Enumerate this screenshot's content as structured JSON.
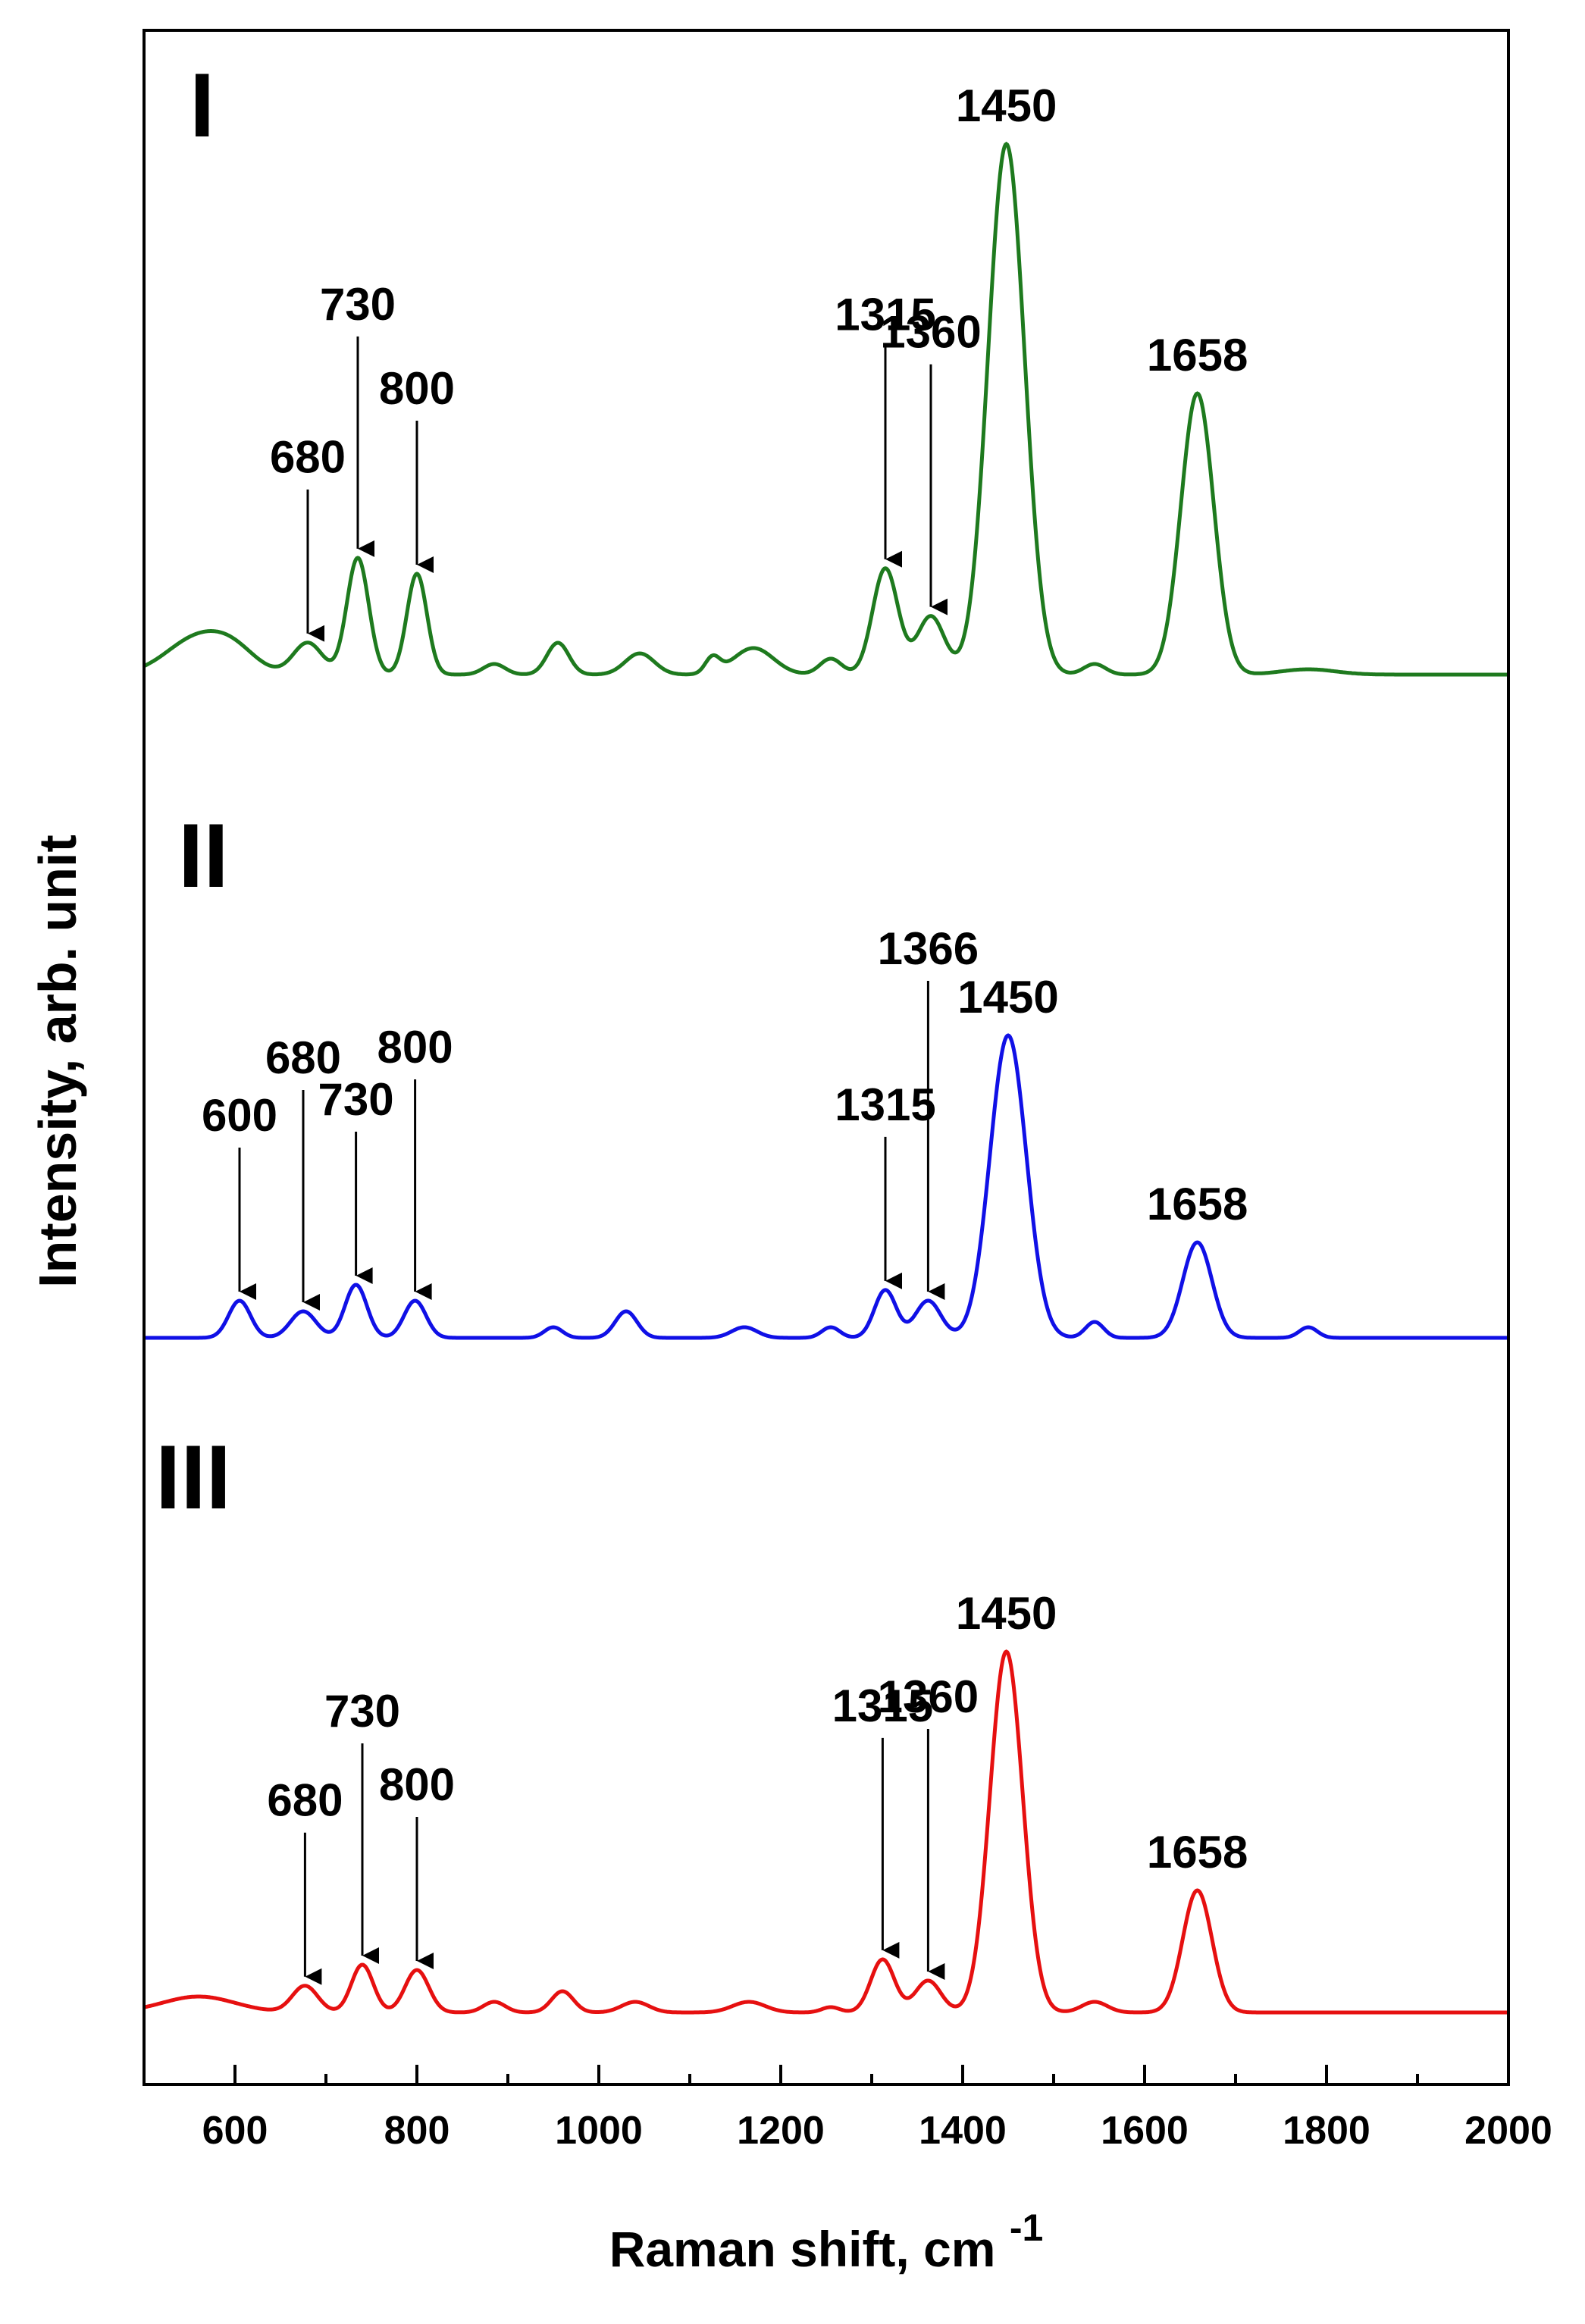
{
  "chart_data": {
    "type": "line",
    "xlabel": "Raman shift, cm",
    "xlabel_superscript": "-1",
    "ylabel": "Intensity, arb. unit",
    "xlim": [
      500,
      2000
    ],
    "x_ticks": [
      600,
      800,
      1000,
      1200,
      1400,
      1600,
      1800,
      2000
    ],
    "x_tick_labels": [
      "600",
      "800",
      "1000",
      "1200",
      "1400",
      "1600",
      "1800",
      "2000"
    ],
    "y_ticks_shown": false,
    "grid": false,
    "series": [
      {
        "name": "I",
        "color": "#1e7a1e",
        "peaks": [
          {
            "x": 560,
            "h": 0.07,
            "w": 35
          },
          {
            "x": 600,
            "h": 0.03,
            "w": 25
          },
          {
            "x": 680,
            "h": 0.06,
            "w": 16
          },
          {
            "x": 735,
            "h": 0.22,
            "w": 12
          },
          {
            "x": 800,
            "h": 0.19,
            "w": 11
          },
          {
            "x": 885,
            "h": 0.02,
            "w": 12
          },
          {
            "x": 955,
            "h": 0.06,
            "w": 12
          },
          {
            "x": 1045,
            "h": 0.04,
            "w": 16
          },
          {
            "x": 1125,
            "h": 0.03,
            "w": 8
          },
          {
            "x": 1170,
            "h": 0.05,
            "w": 22
          },
          {
            "x": 1255,
            "h": 0.03,
            "w": 12
          },
          {
            "x": 1315,
            "h": 0.2,
            "w": 14
          },
          {
            "x": 1365,
            "h": 0.11,
            "w": 15
          },
          {
            "x": 1448,
            "h": 1.0,
            "w": 20
          },
          {
            "x": 1545,
            "h": 0.02,
            "w": 12
          },
          {
            "x": 1658,
            "h": 0.53,
            "w": 18
          },
          {
            "x": 1780,
            "h": 0.01,
            "w": 30
          }
        ],
        "annotations": [
          {
            "text": "680",
            "x": 680,
            "arrow": true
          },
          {
            "text": "730",
            "x": 735,
            "arrow": true
          },
          {
            "text": "800",
            "x": 800,
            "arrow": true
          },
          {
            "text": "1315",
            "x": 1315,
            "arrow": true
          },
          {
            "text": "1360",
            "x": 1365,
            "arrow": true
          },
          {
            "text": "1450",
            "x": 1448,
            "arrow": false
          },
          {
            "text": "1658",
            "x": 1658,
            "arrow": false
          }
        ]
      },
      {
        "name": "II",
        "color": "#1010e6",
        "peaks": [
          {
            "x": 605,
            "h": 0.07,
            "w": 12
          },
          {
            "x": 675,
            "h": 0.05,
            "w": 14
          },
          {
            "x": 733,
            "h": 0.1,
            "w": 12
          },
          {
            "x": 798,
            "h": 0.07,
            "w": 12
          },
          {
            "x": 950,
            "h": 0.02,
            "w": 10
          },
          {
            "x": 1030,
            "h": 0.05,
            "w": 12
          },
          {
            "x": 1160,
            "h": 0.02,
            "w": 14
          },
          {
            "x": 1255,
            "h": 0.02,
            "w": 10
          },
          {
            "x": 1315,
            "h": 0.09,
            "w": 12
          },
          {
            "x": 1362,
            "h": 0.07,
            "w": 14
          },
          {
            "x": 1450,
            "h": 0.57,
            "w": 20
          },
          {
            "x": 1545,
            "h": 0.03,
            "w": 10
          },
          {
            "x": 1658,
            "h": 0.18,
            "w": 16
          },
          {
            "x": 1780,
            "h": 0.02,
            "w": 10
          }
        ],
        "annotations": [
          {
            "text": "600",
            "x": 605,
            "arrow": true
          },
          {
            "text": "680",
            "x": 675,
            "arrow": true
          },
          {
            "text": "730",
            "x": 733,
            "arrow": true
          },
          {
            "text": "800",
            "x": 798,
            "arrow": true
          },
          {
            "text": "1315",
            "x": 1315,
            "arrow": true
          },
          {
            "text": "1366",
            "x": 1362,
            "arrow": true
          },
          {
            "text": "1450",
            "x": 1450,
            "arrow": false
          },
          {
            "text": "1658",
            "x": 1658,
            "arrow": false
          }
        ]
      },
      {
        "name": "III",
        "color": "#e61010",
        "peaks": [
          {
            "x": 560,
            "h": 0.03,
            "w": 40
          },
          {
            "x": 677,
            "h": 0.05,
            "w": 14
          },
          {
            "x": 740,
            "h": 0.09,
            "w": 12
          },
          {
            "x": 800,
            "h": 0.08,
            "w": 13
          },
          {
            "x": 885,
            "h": 0.02,
            "w": 12
          },
          {
            "x": 960,
            "h": 0.04,
            "w": 12
          },
          {
            "x": 1040,
            "h": 0.02,
            "w": 15
          },
          {
            "x": 1165,
            "h": 0.02,
            "w": 18
          },
          {
            "x": 1255,
            "h": 0.01,
            "w": 10
          },
          {
            "x": 1312,
            "h": 0.1,
            "w": 13
          },
          {
            "x": 1362,
            "h": 0.06,
            "w": 14
          },
          {
            "x": 1448,
            "h": 0.68,
            "w": 18
          },
          {
            "x": 1545,
            "h": 0.02,
            "w": 14
          },
          {
            "x": 1658,
            "h": 0.23,
            "w": 16
          }
        ],
        "annotations": [
          {
            "text": "680",
            "x": 677,
            "arrow": true
          },
          {
            "text": "730",
            "x": 740,
            "arrow": true
          },
          {
            "text": "800",
            "x": 800,
            "arrow": true
          },
          {
            "text": "1315",
            "x": 1312,
            "arrow": true
          },
          {
            "text": "1360",
            "x": 1362,
            "arrow": true
          },
          {
            "text": "1450",
            "x": 1448,
            "arrow": false
          },
          {
            "text": "1658",
            "x": 1658,
            "arrow": false
          }
        ]
      }
    ]
  }
}
